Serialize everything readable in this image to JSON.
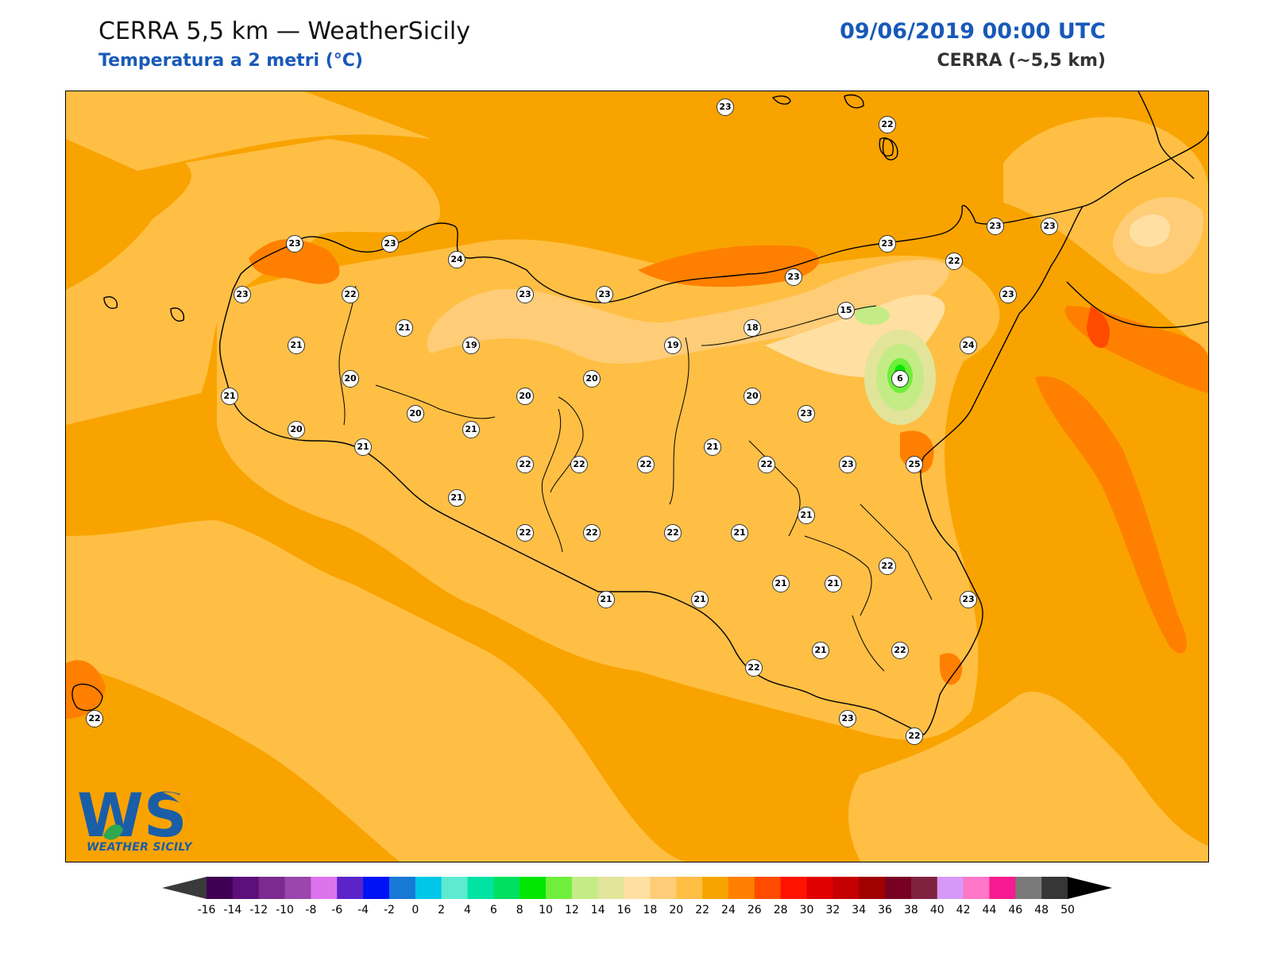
{
  "header": {
    "title": "CERRA 5,5 km — WeatherSicily",
    "subtitle": "Temperatura a 2 metri (°C)",
    "datetime": "09/06/2019 00:00 UTC",
    "model": "CERRA (~5,5 km)"
  },
  "logo": {
    "text": "WEATHER SICILY",
    "mark": "WS",
    "colors": {
      "blue": "#1a5ea8",
      "orange": "#f5a000",
      "green": "#2fa84f"
    }
  },
  "map": {
    "variable": "2 m temperature",
    "unit": "°C",
    "base_color": "#f9a300",
    "stations": [
      {
        "value": "23"
      },
      {
        "value": "22"
      },
      {
        "value": "23"
      },
      {
        "value": "23"
      },
      {
        "value": "24"
      },
      {
        "value": "23"
      },
      {
        "value": "23"
      },
      {
        "value": "23"
      },
      {
        "value": "23"
      },
      {
        "value": "23"
      },
      {
        "value": "23"
      },
      {
        "value": "22"
      },
      {
        "value": "23"
      },
      {
        "value": "22"
      },
      {
        "value": "15"
      },
      {
        "value": "23"
      },
      {
        "value": "21"
      },
      {
        "value": "21"
      },
      {
        "value": "19"
      },
      {
        "value": "19"
      },
      {
        "value": "18"
      },
      {
        "value": "24"
      },
      {
        "value": "20"
      },
      {
        "value": "20"
      },
      {
        "value": "20"
      },
      {
        "value": "20"
      },
      {
        "value": "6"
      },
      {
        "value": "21"
      },
      {
        "value": "20"
      },
      {
        "value": "21"
      },
      {
        "value": "20"
      },
      {
        "value": "23"
      },
      {
        "value": "21"
      },
      {
        "value": "22"
      },
      {
        "value": "22"
      },
      {
        "value": "22"
      },
      {
        "value": "21"
      },
      {
        "value": "22"
      },
      {
        "value": "23"
      },
      {
        "value": "25"
      },
      {
        "value": "21"
      },
      {
        "value": "21"
      },
      {
        "value": "22"
      },
      {
        "value": "22"
      },
      {
        "value": "22"
      },
      {
        "value": "21"
      },
      {
        "value": "22"
      },
      {
        "value": "21"
      },
      {
        "value": "21"
      },
      {
        "value": "21"
      },
      {
        "value": "21"
      },
      {
        "value": "23"
      },
      {
        "value": "21"
      },
      {
        "value": "22"
      },
      {
        "value": "22"
      },
      {
        "value": "22"
      },
      {
        "value": "23"
      },
      {
        "value": "22"
      }
    ]
  },
  "colorbar": {
    "ticks": [
      "-16",
      "-14",
      "-12",
      "-10",
      "-8",
      "-6",
      "-4",
      "-2",
      "0",
      "2",
      "4",
      "6",
      "8",
      "10",
      "12",
      "14",
      "16",
      "18",
      "20",
      "22",
      "24",
      "26",
      "28",
      "30",
      "32",
      "34",
      "36",
      "38",
      "40",
      "42",
      "44",
      "46",
      "48",
      "50"
    ],
    "colors": [
      "#3f0054",
      "#5d0f7a",
      "#7b2a8f",
      "#9a46ac",
      "#dc73ec",
      "#5a24c9",
      "#0012f5",
      "#1778d5",
      "#00c7e8",
      "#5cebd1",
      "#00e3a3",
      "#00e060",
      "#00e600",
      "#70ee3c",
      "#c4ec86",
      "#e2e49a",
      "#ffe0a2",
      "#ffcc77",
      "#ffbf44",
      "#f9a300",
      "#ff8000",
      "#ff4b00",
      "#ff1300",
      "#e00000",
      "#c40000",
      "#a00000",
      "#780020",
      "#7f2240",
      "#d699f7",
      "#ff77c9",
      "#f61b90",
      "#7a7a7a",
      "#363636"
    ],
    "under_color": "#3a3a3a",
    "over_color": "#000000"
  }
}
